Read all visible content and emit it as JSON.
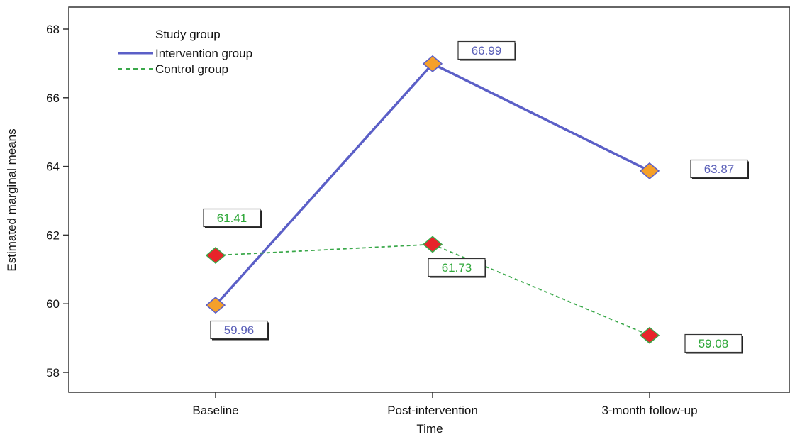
{
  "chart_data": {
    "type": "line",
    "xlabel": "Time",
    "ylabel": "Estimated marginal means",
    "categories": [
      "Baseline",
      "Post-intervention",
      "3-month follow-up"
    ],
    "ylim": [
      57.7,
      68.6
    ],
    "yticks": [
      58,
      60,
      62,
      64,
      66,
      68
    ],
    "grid": false,
    "legend": {
      "title": "Study group",
      "placement": "top-left"
    },
    "series": [
      {
        "name": "Intervention group",
        "values": [
          59.96,
          66.99,
          63.87
        ],
        "labels": [
          "59.96",
          "66.99",
          "63.87"
        ],
        "line_color": "#5b5fc7",
        "line_style": "solid",
        "marker_color": "#f5a02a",
        "label_color": "#5a5fb8"
      },
      {
        "name": "Control group",
        "values": [
          61.41,
          61.73,
          59.08
        ],
        "labels": [
          "61.41",
          "61.73",
          "59.08"
        ],
        "line_color": "#3aa84a",
        "line_style": "dashed",
        "marker_color": "#e8242a",
        "label_color": "#2fa83a"
      }
    ]
  }
}
